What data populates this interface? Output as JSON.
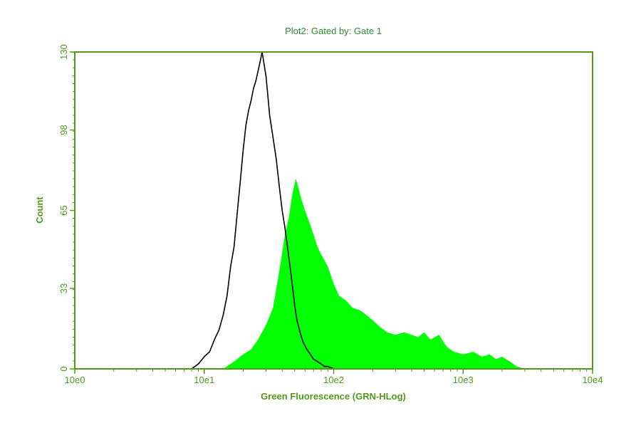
{
  "chart_data": {
    "type": "area",
    "title": "Plot2:  Gated by: Gate 1",
    "xlabel": "Green Fluorescence (GRN-HLog)",
    "ylabel": "Count",
    "x_scale": "log",
    "xlim": [
      1,
      10000
    ],
    "ylim": [
      0,
      130
    ],
    "x_tick_labels": [
      "10e0",
      "10e1",
      "10e2",
      "10e3",
      "10e4"
    ],
    "x_tick_values": [
      1,
      10,
      100,
      1000,
      10000
    ],
    "y_tick_labels": [
      "0",
      "33",
      "65",
      "98",
      "130"
    ],
    "y_tick_values": [
      0,
      33,
      65,
      98,
      130
    ],
    "grid": false,
    "colors": {
      "axis": "#4f9a1c",
      "fill": "#00ff00",
      "line": "#000000",
      "title": "#2f8a2f"
    },
    "series": [
      {
        "style": "filled-histogram",
        "color": "#00ff00",
        "x": [
          14,
          17,
          20,
          23,
          26,
          30,
          34,
          38,
          42,
          45,
          48,
          51,
          53,
          56,
          60,
          65,
          70,
          75,
          80,
          90,
          100,
          110,
          125,
          140,
          160,
          180,
          200,
          230,
          260,
          300,
          350,
          400,
          450,
          500,
          560,
          650,
          750,
          850,
          1000,
          1200,
          1400,
          1600,
          1800,
          2000,
          2300,
          2600,
          3000
        ],
        "values": [
          0,
          3,
          6,
          8,
          12,
          18,
          25,
          40,
          55,
          62,
          72,
          78,
          75,
          70,
          65,
          60,
          55,
          50,
          47,
          42,
          35,
          30,
          28,
          25,
          24,
          22,
          20,
          17,
          15,
          14,
          15,
          14,
          13,
          15,
          12,
          14,
          9,
          7,
          6,
          7,
          5,
          6,
          4,
          5,
          3,
          1,
          0
        ]
      },
      {
        "style": "outline-histogram",
        "color": "#000000",
        "x": [
          8,
          9,
          10,
          11,
          12,
          13,
          14,
          15,
          16,
          17,
          18,
          19,
          20,
          21,
          22,
          23,
          24,
          25,
          26,
          27,
          28,
          29,
          30,
          31,
          32,
          34,
          36,
          38,
          40,
          42,
          44,
          46,
          48,
          50,
          52,
          55,
          58,
          62,
          66,
          70,
          75,
          80,
          85,
          90,
          100,
          110
        ],
        "values": [
          0,
          2,
          5,
          7,
          12,
          16,
          22,
          30,
          42,
          50,
          64,
          77,
          90,
          100,
          106,
          110,
          115,
          118,
          122,
          126,
          130,
          125,
          120,
          112,
          104,
          95,
          86,
          75,
          65,
          58,
          50,
          42,
          34,
          26,
          20,
          15,
          11,
          8,
          6,
          4,
          3,
          2,
          1,
          1,
          0,
          0
        ]
      }
    ]
  }
}
